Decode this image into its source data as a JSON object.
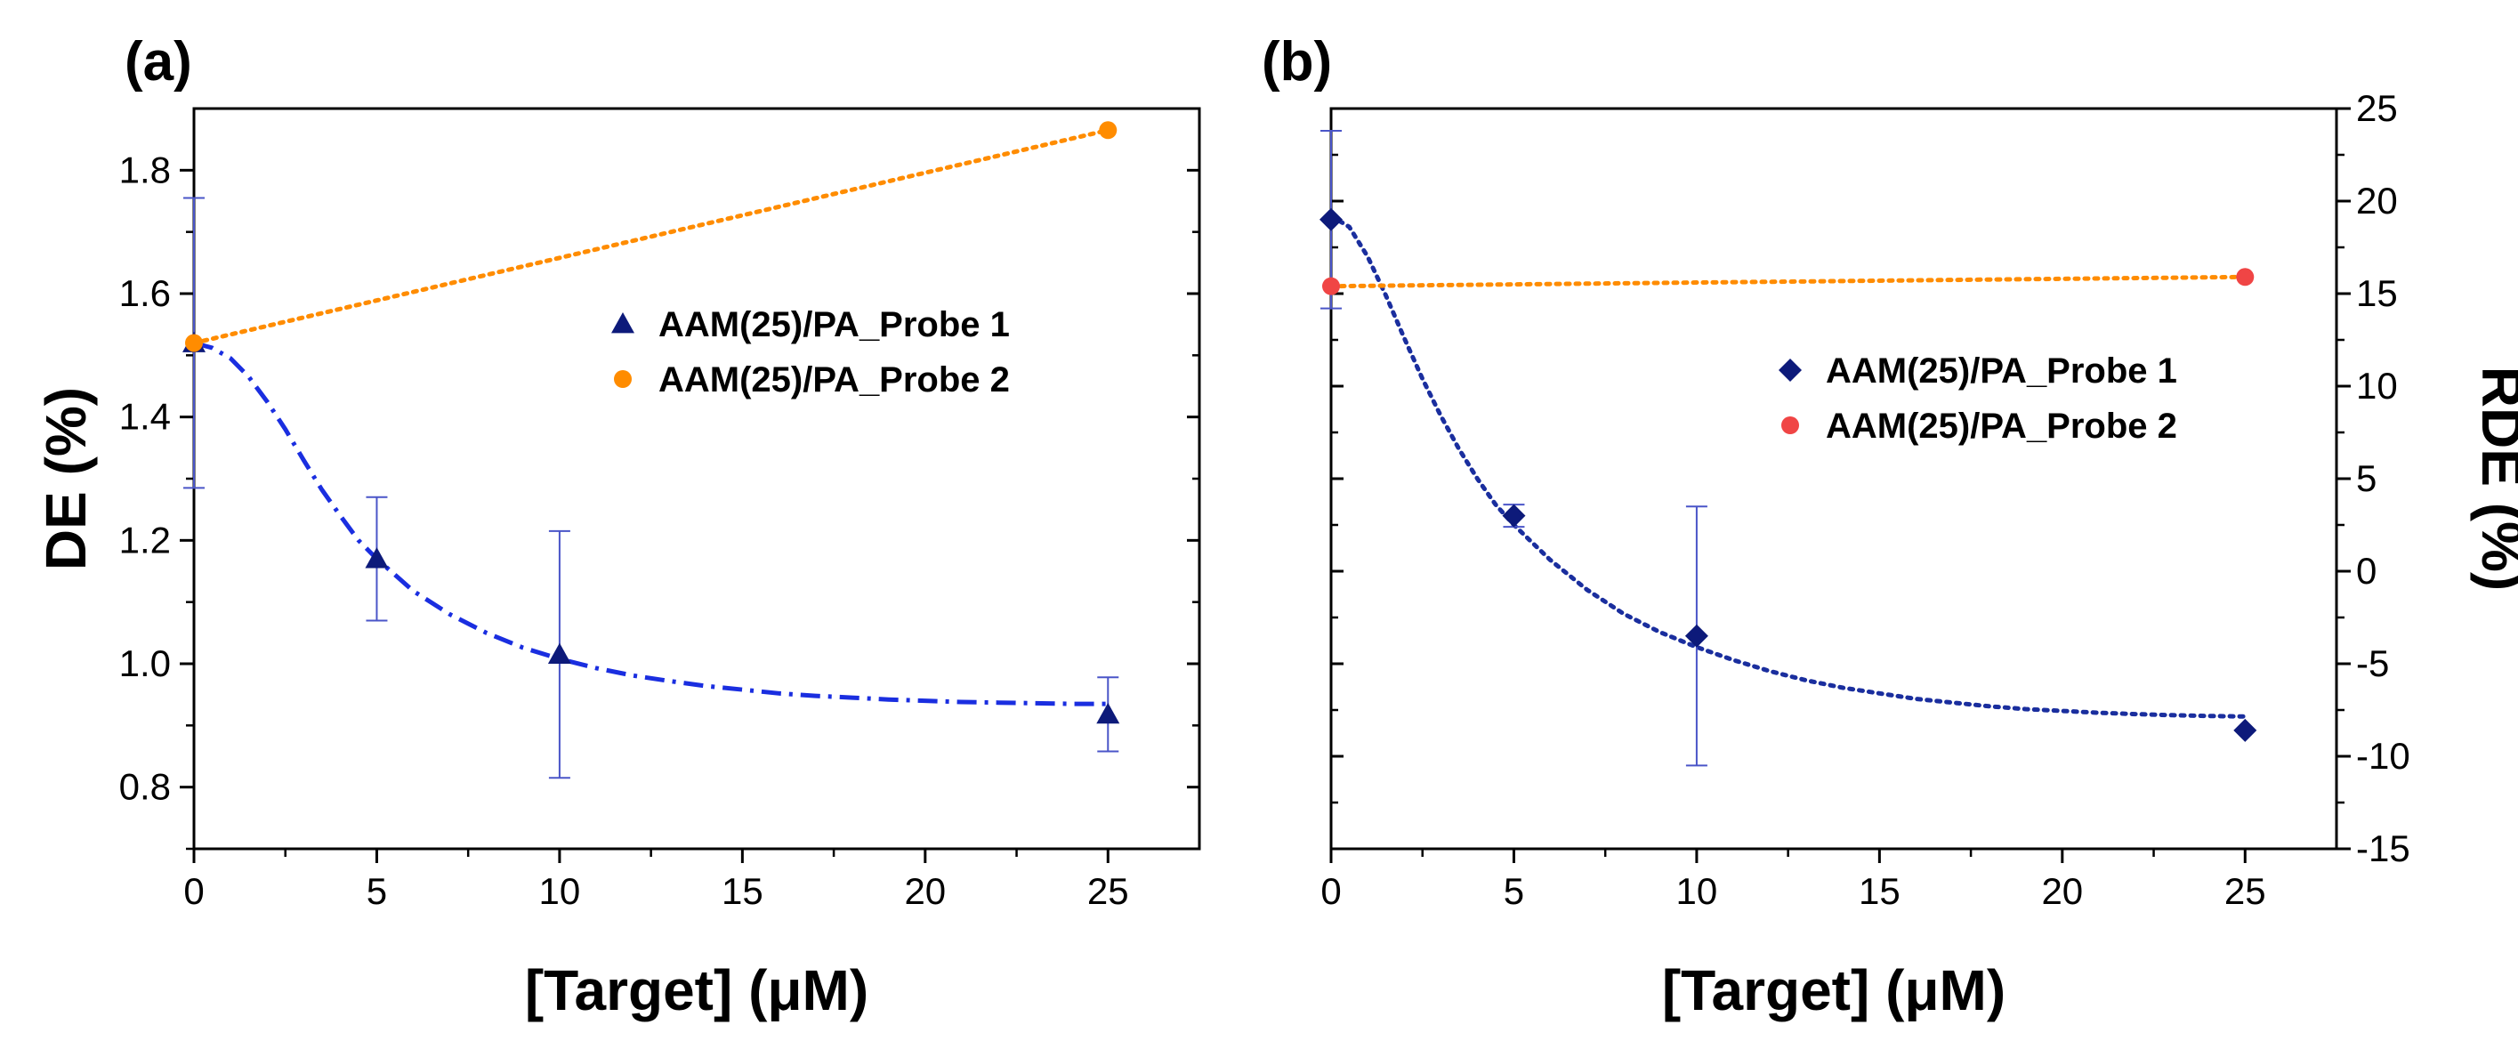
{
  "chart_data": [
    {
      "panel_label": "(a)",
      "type": "scatter",
      "xlabel": "[Target] (μM)",
      "ylabel": "DE (%)",
      "xlim": [
        0,
        27.5
      ],
      "ylim": [
        0.7,
        1.9
      ],
      "xticks": [
        0,
        5,
        10,
        15,
        20,
        25
      ],
      "yticks": [
        0.8,
        1.0,
        1.2,
        1.4,
        1.6,
        1.8
      ],
      "ytick_labels": [
        "0.8",
        "1.0",
        "1.2",
        "1.4",
        "1.6",
        "1.8"
      ],
      "legend_position": "center-right",
      "series": [
        {
          "name": "AAM(25)/PA_Probe 1",
          "marker": "triangle",
          "color": "#0d1a7a",
          "x": [
            0,
            5,
            10,
            25
          ],
          "y": [
            1.52,
            1.17,
            1.015,
            0.918
          ],
          "yerr": [
            0.235,
            0.1,
            0.2,
            0.06
          ],
          "fit_style": "dash-dot",
          "fit_color": "#1a2ee0",
          "fit_x": [
            0,
            0.5,
            1,
            1.5,
            2,
            2.5,
            3,
            3.5,
            4,
            4.5,
            5,
            6,
            7,
            8,
            9,
            10,
            11,
            12,
            13,
            14,
            15,
            16,
            17,
            18,
            19,
            20,
            21,
            22,
            23,
            24,
            25
          ],
          "fit_y": [
            1.52,
            1.512,
            1.495,
            1.465,
            1.425,
            1.38,
            1.33,
            1.282,
            1.24,
            1.2,
            1.17,
            1.118,
            1.08,
            1.05,
            1.026,
            1.008,
            0.993,
            0.981,
            0.972,
            0.964,
            0.958,
            0.952,
            0.948,
            0.945,
            0.942,
            0.94,
            0.938,
            0.937,
            0.936,
            0.935,
            0.935
          ]
        },
        {
          "name": "AAM(25)/PA_Probe 2",
          "marker": "circle",
          "color": "#ff8c00",
          "x": [
            0,
            25
          ],
          "y": [
            1.52,
            1.865
          ],
          "fit_style": "dotted",
          "fit_color": "#ff8c00",
          "fit_x": [
            0,
            25
          ],
          "fit_y": [
            1.52,
            1.865
          ]
        }
      ]
    },
    {
      "panel_label": "(b)",
      "type": "scatter",
      "xlabel": "[Target] (μM)",
      "ylabel": "RDE (%)",
      "xlim": [
        0,
        27.5
      ],
      "ylim": [
        -15,
        25
      ],
      "yaxis_side": "right",
      "xticks": [
        0,
        5,
        10,
        15,
        20,
        25
      ],
      "yticks": [
        -15,
        -10,
        -5,
        0,
        5,
        10,
        15,
        20,
        25
      ],
      "ytick_labels": [
        "-15",
        "-10",
        "-5",
        "0",
        "5",
        "10",
        "15",
        "20",
        "25"
      ],
      "legend_position": "center-right",
      "series": [
        {
          "name": "AAM(25)/PA_Probe 1",
          "marker": "diamond",
          "color": "#0d1a7a",
          "x": [
            0,
            5,
            10,
            25
          ],
          "y": [
            19.0,
            3.0,
            -3.5,
            -8.6
          ],
          "yerr": [
            4.8,
            0.6,
            7.0,
            0
          ],
          "fit_style": "dotted",
          "fit_color": "#1a2e9e",
          "fit_x": [
            0,
            0.5,
            1,
            1.5,
            2,
            2.5,
            3,
            3.5,
            4,
            4.5,
            5,
            6,
            7,
            8,
            9,
            10,
            11,
            12,
            13,
            14,
            15,
            16,
            17,
            18,
            19,
            20,
            21,
            22,
            23,
            24,
            25
          ],
          "fit_y": [
            19.2,
            18.6,
            17.0,
            14.9,
            12.6,
            10.4,
            8.4,
            6.6,
            5.0,
            3.6,
            2.5,
            0.6,
            -1.0,
            -2.3,
            -3.3,
            -4.1,
            -4.8,
            -5.4,
            -5.9,
            -6.3,
            -6.6,
            -6.9,
            -7.1,
            -7.3,
            -7.45,
            -7.55,
            -7.65,
            -7.72,
            -7.78,
            -7.82,
            -7.85
          ]
        },
        {
          "name": "AAM(25)/PA_Probe 2",
          "marker": "circle",
          "color": "#f04545",
          "x": [
            0,
            25
          ],
          "y": [
            15.4,
            15.9
          ],
          "fit_style": "dotted",
          "fit_color": "#ff8c00",
          "fit_x": [
            0,
            25
          ],
          "fit_y": [
            15.4,
            15.9
          ]
        }
      ]
    }
  ]
}
